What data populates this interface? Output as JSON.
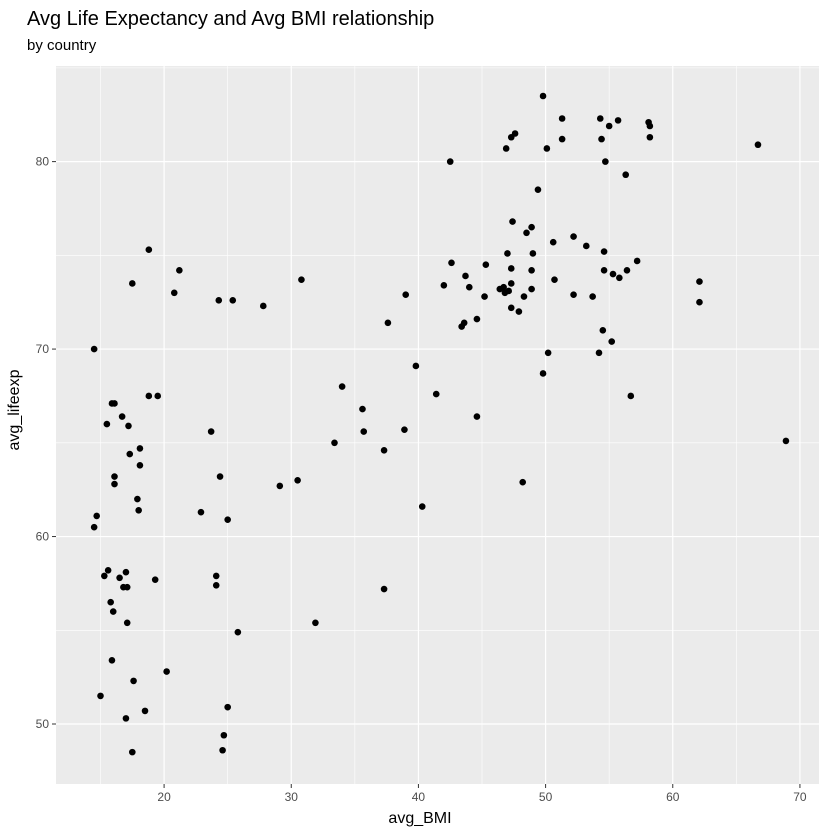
{
  "chart_data": {
    "type": "scatter",
    "title": "Avg Life Expectancy and Avg BMI relationship",
    "subtitle": "by country",
    "xlabel": "avg_BMI",
    "ylabel": "avg_lifeexp",
    "xlim": [
      11.5,
      71.5
    ],
    "ylim": [
      46.8,
      85.1
    ],
    "x_ticks": [
      20,
      30,
      40,
      50,
      60,
      70
    ],
    "y_ticks": [
      50,
      60,
      70,
      80
    ],
    "grid": true,
    "legend": "none",
    "colors": {
      "panel": "#ebebeb",
      "grid_major": "#ffffff",
      "point": "#000000",
      "text": "#4d4d4d"
    },
    "points": [
      [
        14.5,
        70.0
      ],
      [
        14.7,
        61.1
      ],
      [
        14.5,
        60.5
      ],
      [
        15.0,
        51.5
      ],
      [
        15.3,
        57.9
      ],
      [
        15.6,
        58.2
      ],
      [
        15.5,
        66.0
      ],
      [
        15.8,
        56.5
      ],
      [
        15.9,
        53.4
      ],
      [
        16.0,
        56.0
      ],
      [
        15.9,
        67.1
      ],
      [
        16.1,
        67.1
      ],
      [
        16.1,
        63.2
      ],
      [
        16.1,
        62.8
      ],
      [
        16.5,
        57.8
      ],
      [
        16.7,
        66.4
      ],
      [
        16.8,
        57.3
      ],
      [
        17.1,
        57.3
      ],
      [
        17.0,
        58.1
      ],
      [
        17.1,
        55.4
      ],
      [
        17.0,
        50.3
      ],
      [
        17.2,
        65.9
      ],
      [
        17.3,
        64.4
      ],
      [
        17.5,
        73.5
      ],
      [
        17.6,
        52.3
      ],
      [
        17.5,
        48.5
      ],
      [
        17.9,
        62.0
      ],
      [
        18.0,
        61.4
      ],
      [
        18.1,
        64.7
      ],
      [
        18.1,
        63.8
      ],
      [
        18.5,
        50.7
      ],
      [
        18.8,
        75.3
      ],
      [
        18.8,
        67.5
      ],
      [
        19.3,
        57.7
      ],
      [
        19.5,
        67.5
      ],
      [
        20.2,
        52.8
      ],
      [
        20.8,
        73.0
      ],
      [
        21.2,
        74.2
      ],
      [
        22.9,
        61.3
      ],
      [
        23.7,
        65.6
      ],
      [
        24.1,
        57.9
      ],
      [
        24.1,
        57.4
      ],
      [
        24.3,
        72.6
      ],
      [
        24.4,
        63.2
      ],
      [
        24.6,
        48.6
      ],
      [
        24.7,
        49.4
      ],
      [
        25.0,
        50.9
      ],
      [
        25.0,
        60.9
      ],
      [
        25.4,
        72.6
      ],
      [
        25.8,
        54.9
      ],
      [
        27.8,
        72.3
      ],
      [
        29.1,
        62.7
      ],
      [
        30.5,
        63.0
      ],
      [
        30.8,
        73.7
      ],
      [
        31.9,
        55.4
      ],
      [
        33.4,
        65.0
      ],
      [
        34.0,
        68.0
      ],
      [
        35.6,
        66.8
      ],
      [
        35.7,
        65.6
      ],
      [
        37.3,
        64.6
      ],
      [
        37.3,
        57.2
      ],
      [
        37.6,
        71.4
      ],
      [
        38.9,
        65.7
      ],
      [
        39.0,
        72.9
      ],
      [
        39.8,
        69.1
      ],
      [
        40.3,
        61.6
      ],
      [
        41.4,
        67.6
      ],
      [
        42.0,
        73.4
      ],
      [
        42.5,
        80.0
      ],
      [
        42.6,
        74.6
      ],
      [
        43.4,
        71.2
      ],
      [
        43.6,
        71.4
      ],
      [
        43.7,
        73.9
      ],
      [
        44.0,
        73.3
      ],
      [
        44.6,
        71.6
      ],
      [
        44.6,
        66.4
      ],
      [
        45.2,
        72.8
      ],
      [
        45.3,
        74.5
      ],
      [
        46.4,
        73.2
      ],
      [
        46.7,
        73.3
      ],
      [
        46.8,
        73.0
      ],
      [
        46.9,
        80.7
      ],
      [
        47.0,
        75.1
      ],
      [
        47.1,
        73.1
      ],
      [
        47.3,
        81.3
      ],
      [
        47.3,
        74.3
      ],
      [
        47.4,
        76.8
      ],
      [
        47.3,
        72.2
      ],
      [
        47.3,
        73.5
      ],
      [
        47.6,
        81.5
      ],
      [
        47.9,
        72.0
      ],
      [
        48.2,
        62.9
      ],
      [
        48.3,
        72.8
      ],
      [
        48.5,
        76.2
      ],
      [
        48.9,
        76.5
      ],
      [
        48.9,
        74.2
      ],
      [
        48.9,
        73.2
      ],
      [
        49.0,
        75.1
      ],
      [
        49.4,
        78.5
      ],
      [
        49.8,
        83.5
      ],
      [
        49.8,
        68.7
      ],
      [
        50.1,
        80.7
      ],
      [
        50.2,
        69.8
      ],
      [
        50.6,
        75.7
      ],
      [
        50.7,
        73.7
      ],
      [
        51.3,
        82.3
      ],
      [
        51.3,
        81.2
      ],
      [
        52.2,
        76.0
      ],
      [
        52.2,
        72.9
      ],
      [
        53.2,
        75.5
      ],
      [
        53.7,
        72.8
      ],
      [
        54.2,
        69.8
      ],
      [
        54.3,
        82.3
      ],
      [
        54.4,
        81.2
      ],
      [
        54.5,
        71.0
      ],
      [
        54.6,
        75.2
      ],
      [
        54.6,
        74.2
      ],
      [
        54.7,
        80.0
      ],
      [
        55.0,
        81.9
      ],
      [
        55.2,
        70.4
      ],
      [
        55.3,
        74.0
      ],
      [
        55.7,
        82.2
      ],
      [
        55.8,
        73.8
      ],
      [
        56.3,
        79.3
      ],
      [
        56.4,
        74.2
      ],
      [
        56.7,
        67.5
      ],
      [
        57.2,
        74.7
      ],
      [
        58.1,
        82.1
      ],
      [
        58.2,
        81.9
      ],
      [
        58.2,
        81.3
      ],
      [
        62.1,
        73.6
      ],
      [
        62.1,
        72.5
      ],
      [
        66.7,
        80.9
      ],
      [
        68.9,
        65.1
      ]
    ]
  }
}
